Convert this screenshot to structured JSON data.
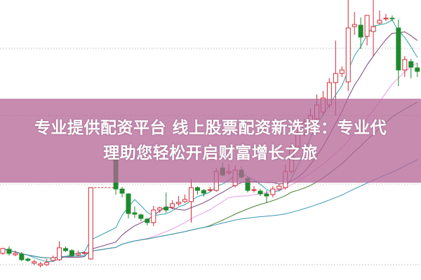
{
  "banner": {
    "line1": "专业提供配资平台 线上股票配资新选择：专业代",
    "line2": "理助您轻松开启财富增长之旅"
  },
  "chart_data": {
    "type": "candlestick",
    "title": "",
    "xlabel": "",
    "ylabel": "",
    "grid": "horizontal dotted",
    "colors": {
      "up": "#d42a35",
      "down": "#1f8a2c",
      "ma5": "#2fa3a8",
      "ma10": "#7b3f78",
      "ma20": "#e79be6",
      "ma30": "#4b7f3a",
      "ma60": "#3b95b5",
      "banner": "#c78bb0"
    },
    "moving_averages": [
      5,
      10,
      20,
      30,
      60
    ],
    "candles": [
      [
        3.8,
        4.6,
        3.6,
        4.5
      ],
      [
        4.4,
        4.8,
        3.5,
        3.8
      ],
      [
        3.6,
        4.2,
        3.4,
        3.8
      ],
      [
        3.7,
        4.0,
        2.7,
        2.9
      ],
      [
        3.0,
        3.2,
        2.6,
        2.8
      ],
      [
        2.4,
        2.9,
        2.1,
        2.6
      ],
      [
        2.1,
        2.6,
        1.8,
        2.3
      ],
      [
        2.2,
        3.0,
        2.0,
        2.5
      ],
      [
        2.8,
        3.5,
        2.6,
        3.2
      ],
      [
        2.9,
        5.5,
        2.7,
        4.6
      ],
      [
        4.5,
        4.8,
        4.0,
        4.2
      ],
      [
        4.2,
        4.4,
        3.3,
        3.5
      ],
      [
        3.6,
        4.2,
        3.4,
        3.8
      ],
      [
        3.8,
        4.1,
        3.6,
        3.9
      ],
      [
        3.0,
        13.2,
        2.9,
        13.2
      ],
      null,
      null,
      null,
      [
        17.5,
        17.8,
        12.2,
        13.0
      ],
      [
        13.0,
        13.3,
        11.8,
        12.4
      ],
      [
        12.3,
        12.4,
        8.8,
        9.5
      ],
      [
        9.6,
        10.5,
        8.9,
        9.4
      ],
      [
        9.3,
        9.5,
        8.4,
        8.8
      ],
      [
        8.7,
        8.9,
        7.8,
        8.2
      ],
      [
        8.2,
        10.6,
        7.7,
        10.0
      ],
      [
        10.0,
        10.5,
        9.6,
        10.3
      ],
      [
        10.4,
        12.5,
        9.6,
        10.0
      ],
      [
        10.4,
        11.4,
        10.1,
        10.9
      ],
      [
        10.9,
        12.0,
        10.6,
        11.1
      ],
      [
        11.2,
        12.2,
        11.0,
        11.5
      ],
      [
        11.2,
        14.4,
        8.2,
        13.2
      ],
      [
        13.2,
        13.4,
        12.2,
        12.8
      ],
      [
        12.8,
        13.0,
        11.9,
        12.4
      ],
      [
        12.8,
        13.3,
        12.6,
        12.9
      ],
      [
        12.8,
        16.0,
        12.6,
        15.5
      ],
      [
        16.0,
        16.8,
        14.8,
        15.0
      ],
      [
        15.3,
        16.5,
        15.0,
        15.5
      ],
      [
        13.5,
        16.4,
        13.2,
        15.7
      ],
      [
        15.7,
        16.2,
        14.5,
        14.7
      ],
      [
        14.5,
        14.8,
        12.5,
        12.8
      ],
      [
        12.8,
        13.4,
        12.5,
        12.9
      ],
      [
        12.7,
        13.0,
        12.0,
        12.3
      ],
      [
        12.3,
        12.8,
        11.0,
        12.0
      ],
      [
        12.2,
        13.4,
        11.8,
        13.0
      ],
      [
        13.0,
        13.7,
        12.7,
        13.4
      ],
      [
        13.2,
        16.5,
        12.9,
        15.5
      ],
      [
        15.5,
        19.5,
        15.2,
        19.0
      ],
      [
        19.0,
        21.5,
        18.6,
        21.0
      ],
      [
        21.0,
        23.0,
        20.5,
        22.5
      ],
      [
        22.0,
        24.5,
        21.8,
        23.5
      ],
      [
        23.0,
        26.5,
        22.8,
        25.0
      ],
      [
        24.0,
        27.0,
        23.5,
        26.0
      ],
      [
        25.0,
        28.8,
        24.5,
        28.2
      ],
      [
        28.2,
        34.2,
        23.5,
        29.5
      ],
      [
        29.5,
        30.5,
        29.0,
        30.0
      ],
      [
        28.3,
        40.0,
        27.0,
        36.0
      ],
      [
        36.2,
        38.3,
        35.0,
        36.5
      ],
      [
        36.4,
        37.5,
        33.0,
        34.7
      ],
      [
        34.8,
        37.8,
        33.5,
        37.8
      ],
      [
        35.5,
        40.0,
        32.0,
        36.2
      ],
      [
        36.7,
        38.5,
        36.5,
        37.1
      ],
      [
        37.3,
        38.0,
        37.0,
        37.4
      ],
      [
        37.4,
        37.8,
        37.0,
        37.3
      ],
      [
        36.0,
        37.2,
        27.7,
        30.0
      ],
      [
        30.0,
        32.0,
        29.0,
        31.5
      ],
      [
        31.2,
        31.6,
        28.8,
        30.4
      ],
      [
        30.3,
        31.0,
        29.0,
        29.8
      ]
    ]
  }
}
